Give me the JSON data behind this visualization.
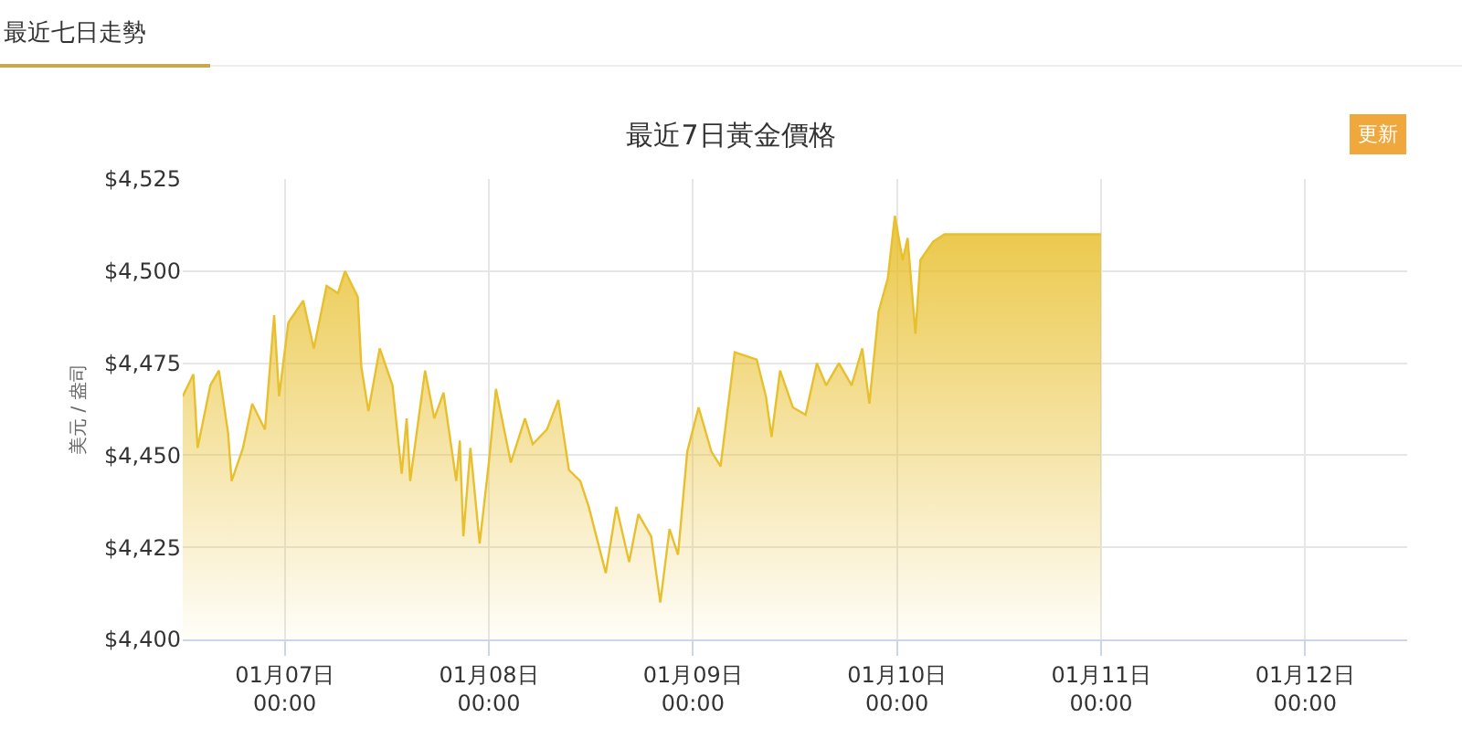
{
  "chart_data": {
    "type": "area",
    "title": "最近7日黃金價格",
    "ylabel": "美元 / 盎司",
    "annotations": [
      "最近七日走勢",
      "更新"
    ],
    "x": [
      "--01-06T12:00",
      "--01-06T13:15",
      "--01-06T13:45",
      "--01-06T15:15",
      "--01-06T16:15",
      "--01-06T17:20",
      "--01-06T17:45",
      "--01-06T19:05",
      "--01-06T20:10",
      "--01-06T21:40",
      "--01-06T22:45",
      "--01-06T23:20",
      "--01-07T00:25",
      "--01-07T02:10",
      "--01-07T03:25",
      "--01-07T04:55",
      "--01-07T06:15",
      "--01-07T07:05",
      "--01-07T08:35",
      "--01-07T09:00",
      "--01-07T09:50",
      "--01-07T11:10",
      "--01-07T12:40",
      "--01-07T13:45",
      "--01-07T14:20",
      "--01-07T14:45",
      "--01-07T16:30",
      "--01-07T17:35",
      "--01-07T18:40",
      "--01-07T20:10",
      "--01-07T20:35",
      "--01-07T21:00",
      "--01-07T21:50",
      "--01-07T22:55",
      "--01-08T00:00",
      "--01-08T00:50",
      "--01-08T02:35",
      "--01-08T04:15",
      "--01-08T05:10",
      "--01-08T06:50",
      "--01-08T08:10",
      "--01-08T09:25",
      "--01-08T10:45",
      "--01-08T11:45",
      "--01-08T13:45",
      "--01-08T15:00",
      "--01-08T16:30",
      "--01-08T17:35",
      "--01-08T19:05",
      "--01-08T20:10",
      "--01-08T21:15",
      "--01-08T22:15",
      "--01-08T23:20",
      "--01-09T00:40",
      "--01-09T02:10",
      "--01-09T03:15",
      "--01-09T04:55",
      "--01-09T07:30",
      "--01-09T08:35",
      "--01-09T09:15",
      "--01-09T10:15",
      "--01-09T11:45",
      "--01-09T13:15",
      "--01-09T14:35",
      "--01-09T15:40",
      "--01-09T17:10",
      "--01-09T18:40",
      "--01-09T19:55",
      "--01-09T20:45",
      "--01-09T21:50",
      "--01-09T22:55",
      "--01-09T23:45",
      "--01-10T00:40",
      "--01-10T01:15",
      "--01-10T02:10",
      "--01-10T02:45",
      "--01-10T04:15",
      "--01-10T05:35",
      "--01-11T00:00"
    ],
    "series": [
      {
        "color": "#e8bf2c",
        "values": [
          4466,
          4472,
          4452,
          4469,
          4473,
          4456,
          4443,
          4452,
          4464,
          4457,
          4488,
          4466,
          4486,
          4492,
          4479,
          4496,
          4494,
          4500,
          4493,
          4474,
          4462,
          4479,
          4469,
          4445,
          4460,
          4443,
          4473,
          4460,
          4467,
          4443,
          4454,
          4428,
          4452,
          4426,
          4448,
          4468,
          4448,
          4460,
          4453,
          4457,
          4465,
          4446,
          4443,
          4436,
          4418,
          4436,
          4421,
          4434,
          4428,
          4410,
          4430,
          4423,
          4451,
          4463,
          4451,
          4447,
          4478,
          4476,
          4466,
          4455,
          4473,
          4463,
          4461,
          4475,
          4469,
          4475,
          4469,
          4479,
          4464,
          4489,
          4498,
          4515,
          4503,
          4509,
          4483,
          4503,
          4508,
          4510,
          4510
        ]
      }
    ],
    "xlim": [
      "--01-06T12:00",
      "--01-12T12:00"
    ],
    "xticks": [
      {
        "value": "--01-07T00:00",
        "label": "01月07日\n00:00"
      },
      {
        "value": "--01-08T00:00",
        "label": "01月08日\n00:00"
      },
      {
        "value": "--01-09T00:00",
        "label": "01月09日\n00:00"
      },
      {
        "value": "--01-10T00:00",
        "label": "01月10日\n00:00"
      },
      {
        "value": "--01-11T00:00",
        "label": "01月11日\n00:00"
      },
      {
        "value": "--01-12T00:00",
        "label": "01月12日\n00:00"
      }
    ],
    "ylim": [
      4400,
      4525
    ],
    "yticks": [
      {
        "value": 4400,
        "label": "$4,400"
      },
      {
        "value": 4425,
        "label": "$4,425"
      },
      {
        "value": 4450,
        "label": "$4,450"
      },
      {
        "value": 4475,
        "label": "$4,475"
      },
      {
        "value": 4500,
        "label": "$4,500"
      },
      {
        "value": 4525,
        "label": "$4,525"
      }
    ],
    "grid": true
  }
}
